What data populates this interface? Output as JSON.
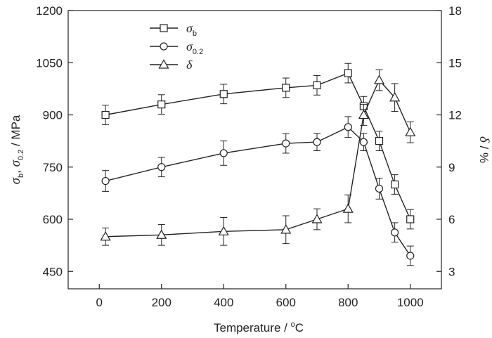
{
  "chart_data": {
    "type": "line",
    "x_axis": {
      "label": "Temperature / °C",
      "range": [
        -100,
        1100
      ],
      "ticks": [
        0,
        200,
        400,
        600,
        800,
        1000
      ],
      "tick_labels": [
        "0",
        "200",
        "400",
        "600",
        "800",
        "1000"
      ]
    },
    "y_axis_left": {
      "label": "σb, σ0.2 / MPa",
      "range": [
        400,
        1200
      ],
      "ticks": [
        450,
        600,
        750,
        900,
        1050,
        1200
      ],
      "tick_labels": [
        "450",
        "600",
        "750",
        "900",
        "1050",
        "1200"
      ]
    },
    "y_axis_right": {
      "label": "δ / %",
      "range": [
        2,
        18
      ],
      "ticks": [
        3,
        6,
        9,
        12,
        15,
        18
      ],
      "tick_labels": [
        "3",
        "6",
        "9",
        "12",
        "15",
        "18"
      ]
    },
    "series": [
      {
        "name": "σb",
        "marker": "square",
        "axis": "left",
        "x": [
          20,
          200,
          400,
          600,
          700,
          800,
          850,
          900,
          950,
          1000
        ],
        "y": [
          900,
          930,
          960,
          978,
          985,
          1020,
          925,
          825,
          700,
          600
        ],
        "error": [
          28,
          28,
          28,
          28,
          28,
          28,
          28,
          28,
          28,
          28
        ]
      },
      {
        "name": "σ0.2",
        "marker": "circle",
        "axis": "left",
        "x": [
          20,
          200,
          400,
          600,
          700,
          800,
          850,
          900,
          950,
          1000
        ],
        "y": [
          710,
          750,
          790,
          818,
          822,
          865,
          822,
          688,
          562,
          495
        ],
        "error": [
          30,
          28,
          35,
          28,
          25,
          30,
          25,
          30,
          28,
          28
        ]
      },
      {
        "name": "δ",
        "marker": "triangle",
        "axis": "right",
        "x": [
          20,
          200,
          400,
          600,
          700,
          800,
          850,
          900,
          950,
          1000
        ],
        "y": [
          5.0,
          5.1,
          5.3,
          5.4,
          6.0,
          6.6,
          12.0,
          14.0,
          13.0,
          11.0
        ],
        "error": [
          0.5,
          0.6,
          0.8,
          0.8,
          0.6,
          0.8,
          0.6,
          0.6,
          0.8,
          0.6
        ]
      }
    ],
    "legend": {
      "position": "top-left",
      "entries": [
        {
          "symbol": "σ",
          "sub": "b",
          "marker": "square"
        },
        {
          "symbol": "σ",
          "sub": "0.2",
          "marker": "circle"
        },
        {
          "symbol": "δ",
          "sub": "",
          "marker": "triangle"
        }
      ]
    }
  }
}
